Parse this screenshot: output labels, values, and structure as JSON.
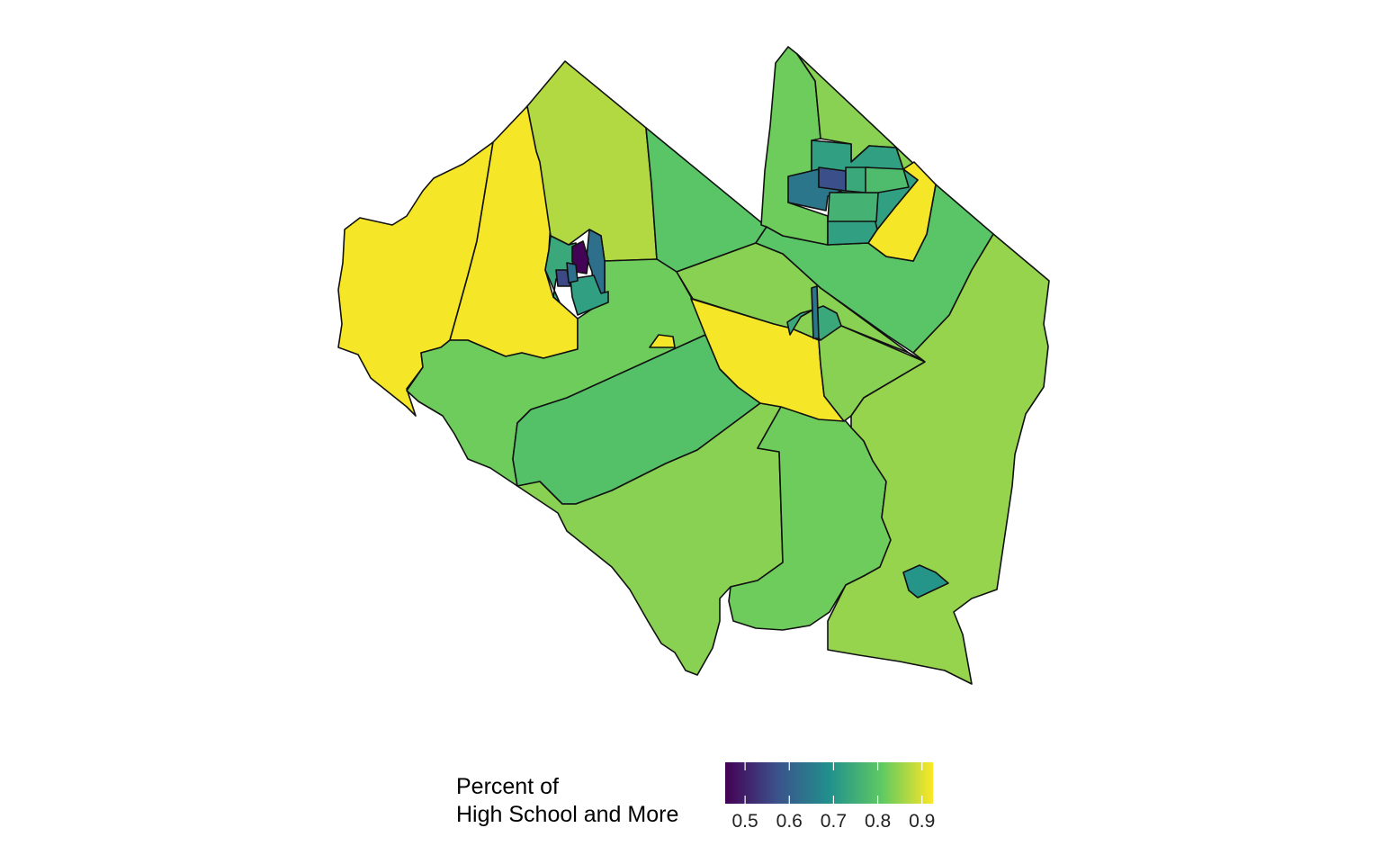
{
  "legend": {
    "title_line1": "Percent of",
    "title_line2": "High School and More",
    "ticks": [
      {
        "label": "0.5",
        "value": 0.5
      },
      {
        "label": "0.6",
        "value": 0.6
      },
      {
        "label": "0.7",
        "value": 0.7
      },
      {
        "label": "0.8",
        "value": 0.8
      },
      {
        "label": "0.9",
        "value": 0.9
      }
    ],
    "range": [
      0.455,
      0.925
    ],
    "palette": [
      "#440154",
      "#3b528b",
      "#21908d",
      "#5dc963",
      "#fde725"
    ]
  },
  "regions": [
    {
      "name": "west-large-tract",
      "value": 0.92
    },
    {
      "name": "west-central-tract",
      "value": 0.92
    },
    {
      "name": "north-tract",
      "value": 0.87
    },
    {
      "name": "northeast-wedge-tract",
      "value": 0.8
    },
    {
      "name": "central-southwest-tract",
      "value": 0.82
    },
    {
      "name": "south-central-tract",
      "value": 0.79
    },
    {
      "name": "southwest-tract",
      "value": 0.84
    },
    {
      "name": "south-tract",
      "value": 0.82
    },
    {
      "name": "central-diamond-tract",
      "value": 0.84
    },
    {
      "name": "central-diagonal-tract",
      "value": 0.92
    },
    {
      "name": "central-east-tract",
      "value": 0.84
    },
    {
      "name": "east-large-tract",
      "value": 0.85
    },
    {
      "name": "northeast-tract",
      "value": 0.8
    },
    {
      "name": "north-strip-tract",
      "value": 0.82
    },
    {
      "name": "north-diagonal-tract",
      "value": 0.84
    },
    {
      "name": "north-diagonal-yellow-tract",
      "value": 0.92
    },
    {
      "name": "town-tract-1",
      "value": 0.72
    },
    {
      "name": "town-tract-2",
      "value": 0.72
    },
    {
      "name": "town-tract-3",
      "value": 0.64
    },
    {
      "name": "town-tract-4",
      "value": 0.57
    },
    {
      "name": "town-tract-5",
      "value": 0.74
    },
    {
      "name": "town-tract-6",
      "value": 0.76
    },
    {
      "name": "town-tract-7",
      "value": 0.78
    },
    {
      "name": "west-town-tract-1",
      "value": 0.74
    },
    {
      "name": "west-town-tract-2",
      "value": 0.63
    },
    {
      "name": "west-town-tract-3",
      "value": 0.46
    },
    {
      "name": "west-town-tract-4",
      "value": 0.56
    },
    {
      "name": "west-town-tract-5",
      "value": 0.72
    },
    {
      "name": "west-town-tract-6",
      "value": 0.63
    },
    {
      "name": "central-town-tract",
      "value": 0.74
    },
    {
      "name": "central-town-strip",
      "value": 0.64
    },
    {
      "name": "small-enclave-tract",
      "value": 0.92
    },
    {
      "name": "southeast-enclave-tract",
      "value": 0.7
    }
  ]
}
